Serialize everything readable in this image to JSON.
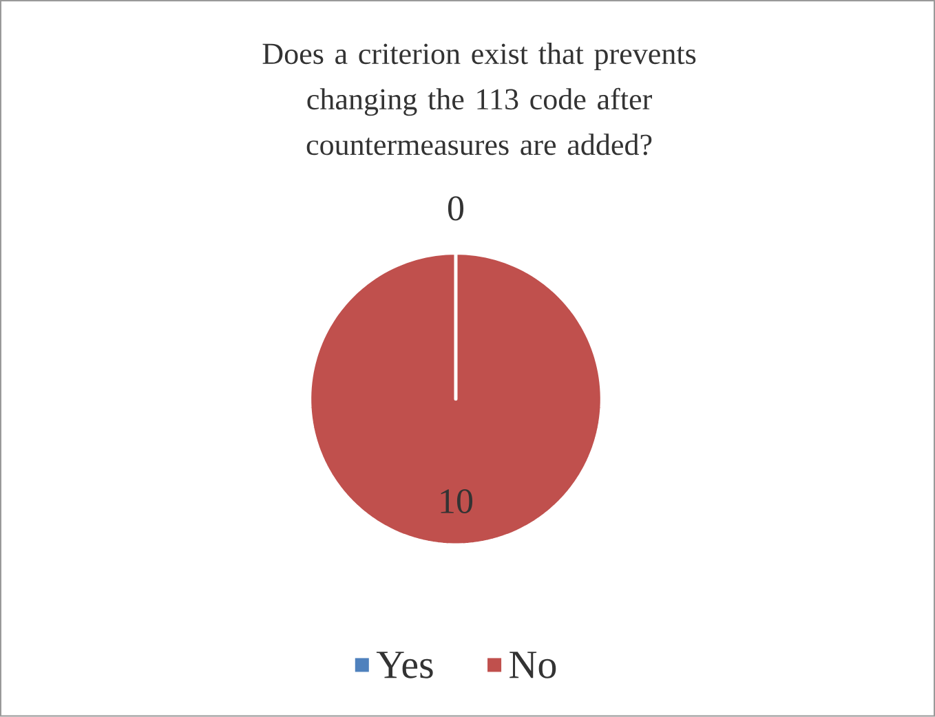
{
  "chart_data": {
    "type": "pie",
    "title": "Does a criterion exist that prevents changing the 113 code after countermeasures are added?",
    "categories": [
      "Yes",
      "No"
    ],
    "values": [
      0,
      10
    ],
    "value_labels": [
      "0",
      "10"
    ],
    "colors": [
      "#4f81bd",
      "#c0504d"
    ],
    "legend": "bottom"
  }
}
